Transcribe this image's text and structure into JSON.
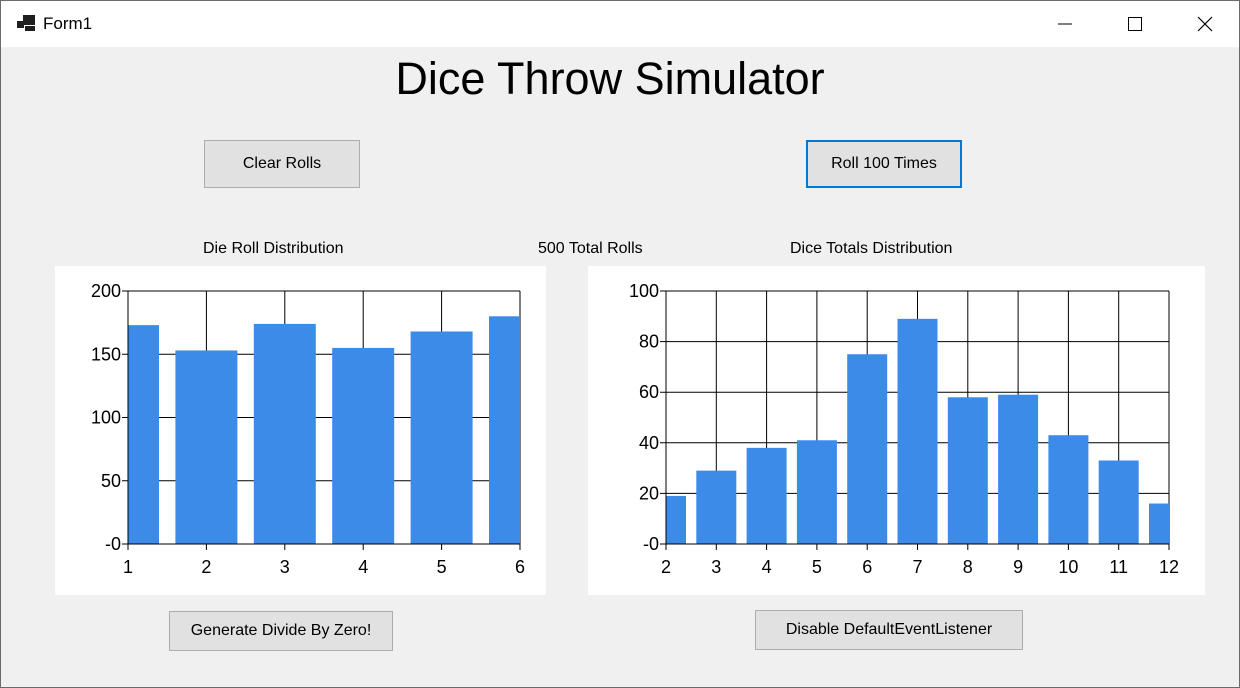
{
  "window": {
    "title": "Form1",
    "controls": {
      "minimize": "minimize-icon",
      "maximize": "maximize-icon",
      "close": "close-icon"
    }
  },
  "heading": "Dice Throw Simulator",
  "buttons": {
    "clear": "Clear Rolls",
    "roll": "Roll 100 Times",
    "divide": "Generate Divide By Zero!",
    "disable": "Disable DefaultEventListener"
  },
  "labels": {
    "die_chart_title": "Die Roll Distribution",
    "total_rolls": "500 Total Rolls",
    "totals_chart_title": "Dice Totals Distribution"
  },
  "colors": {
    "bar": "#3d8be8",
    "focus": "#0078d7"
  },
  "chart_data": [
    {
      "type": "bar",
      "title": "Die Roll Distribution",
      "categories": [
        "1",
        "2",
        "3",
        "4",
        "5",
        "6"
      ],
      "values": [
        173,
        153,
        174,
        155,
        168,
        180
      ],
      "ylim": [
        0,
        200
      ],
      "yticks": [
        "-0",
        "50",
        "100",
        "150",
        "200"
      ],
      "grid": true
    },
    {
      "type": "bar",
      "title": "Dice Totals Distribution",
      "categories": [
        "2",
        "3",
        "4",
        "5",
        "6",
        "7",
        "8",
        "9",
        "10",
        "11",
        "12"
      ],
      "values": [
        19,
        29,
        38,
        41,
        75,
        89,
        58,
        59,
        43,
        33,
        16
      ],
      "ylim": [
        0,
        100
      ],
      "yticks": [
        "-0",
        "20",
        "40",
        "60",
        "80",
        "100"
      ],
      "grid": true
    }
  ]
}
